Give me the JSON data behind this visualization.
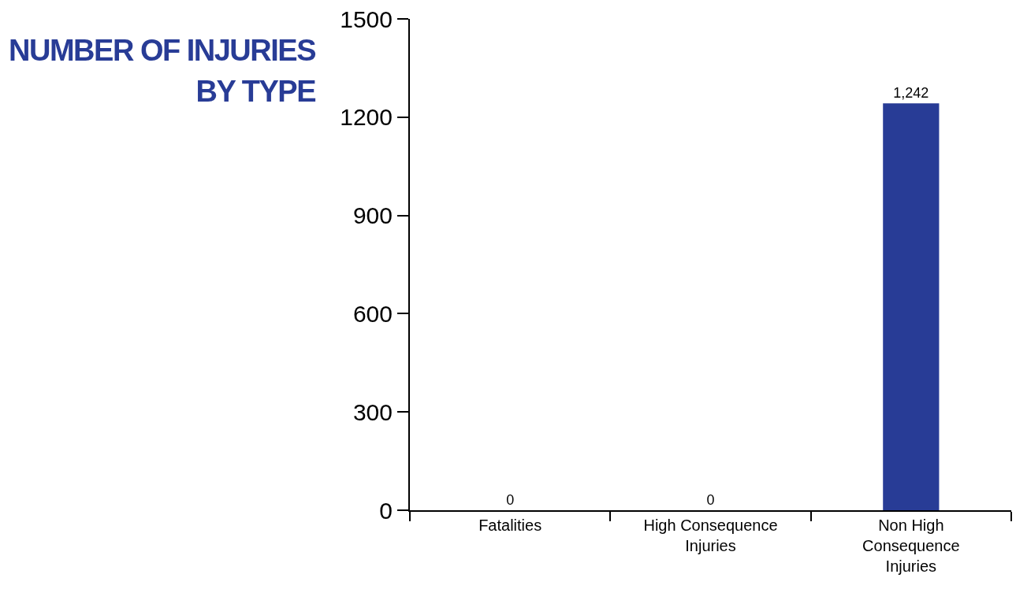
{
  "chart_data": {
    "type": "bar",
    "title": "NUMBER OF INJURIES BY TYPE",
    "categories": [
      "Fatalities",
      "High Consequence Injuries",
      "Non High Consequence Injuries"
    ],
    "values": [
      0,
      0,
      1242
    ],
    "value_labels": [
      "0",
      "0",
      "1,242"
    ],
    "color": "#283c96",
    "ylim": [
      0,
      1500
    ],
    "yticks": [
      0,
      300,
      600,
      900,
      1200,
      1500
    ],
    "grid": false,
    "legend": false
  }
}
